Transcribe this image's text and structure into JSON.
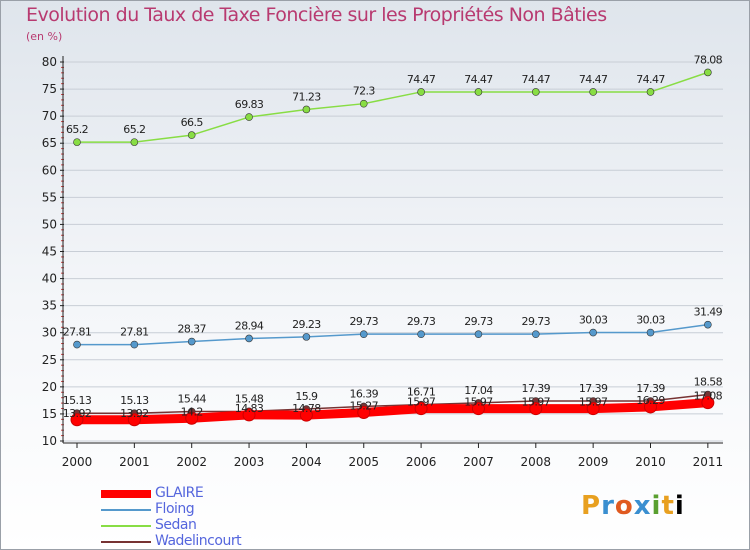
{
  "chart_data": {
    "type": "line",
    "title": "Evolution du Taux de Taxe Foncière sur les Propriétés Non Bâties",
    "ylabel": "(en %)",
    "xlabel": "",
    "ylim": [
      10,
      80
    ],
    "yticks": [
      "10",
      "15",
      "20",
      "25",
      "30",
      "35",
      "40",
      "45",
      "50",
      "55",
      "60",
      "65",
      "70",
      "75",
      "80"
    ],
    "categories": [
      "2000",
      "2001",
      "2002",
      "2003",
      "2004",
      "2005",
      "2006",
      "2007",
      "2008",
      "2009",
      "2010",
      "2011"
    ],
    "series": [
      {
        "name": "GLAIRE",
        "color": "#ff0000",
        "values": [
          13.92,
          13.92,
          14.2,
          14.83,
          14.78,
          15.27,
          15.97,
          15.97,
          15.97,
          15.97,
          16.29,
          17.08
        ],
        "labels": [
          "13.92",
          "13.92",
          "14.2",
          "14.83",
          "14.78",
          "15.27",
          "15.97",
          "15.97",
          "15.97",
          "15.97",
          "16.29",
          "17.08"
        ]
      },
      {
        "name": "Floing",
        "color": "#5599cc",
        "values": [
          27.81,
          27.81,
          28.37,
          28.94,
          29.23,
          29.73,
          29.73,
          29.73,
          29.73,
          30.03,
          30.03,
          31.49
        ],
        "labels": [
          "27.81",
          "27.81",
          "28.37",
          "28.94",
          "29.23",
          "29.73",
          "29.73",
          "29.73",
          "29.73",
          "30.03",
          "30.03",
          "31.49"
        ]
      },
      {
        "name": "Sedan",
        "color": "#88dd44",
        "values": [
          65.2,
          65.2,
          66.5,
          69.83,
          71.23,
          72.3,
          74.47,
          74.47,
          74.47,
          74.47,
          74.47,
          78.08
        ],
        "labels": [
          "65.2",
          "65.2",
          "66.5",
          "69.83",
          "71.23",
          "72.3",
          "74.47",
          "74.47",
          "74.47",
          "74.47",
          "74.47",
          "78.08"
        ]
      },
      {
        "name": "Wadelincourt",
        "color": "#773333",
        "values": [
          15.13,
          15.13,
          15.44,
          15.48,
          15.9,
          16.39,
          16.71,
          17.04,
          17.39,
          17.39,
          17.39,
          18.58
        ],
        "labels": [
          "15.13",
          "15.13",
          "15.44",
          "15.48",
          "15.9",
          "16.39",
          "16.71",
          "17.04",
          "17.39",
          "17.39",
          "17.39",
          "18.58"
        ]
      }
    ]
  },
  "brand": {
    "logo": [
      "P",
      "r",
      "o",
      "x",
      "i",
      "t",
      "i"
    ]
  }
}
